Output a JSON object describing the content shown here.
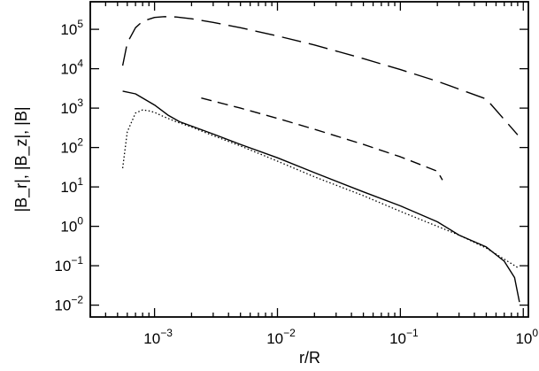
{
  "chart_data": {
    "type": "line",
    "xlabel": "r/R",
    "ylabel": "|B_r|, |B_z|, |B|",
    "xscale": "log",
    "yscale": "log",
    "xlim": [
      0.0003,
      1.1
    ],
    "ylim": [
      0.005,
      500000
    ],
    "x_ticks": [
      {
        "value": 0.001,
        "base": "10",
        "exp": "−3"
      },
      {
        "value": 0.01,
        "base": "10",
        "exp": "−2"
      },
      {
        "value": 0.1,
        "base": "10",
        "exp": "−1"
      },
      {
        "value": 1,
        "base": "10",
        "exp": "0"
      }
    ],
    "y_ticks": [
      {
        "value": 0.01,
        "base": "10",
        "exp": "−2"
      },
      {
        "value": 0.1,
        "base": "10",
        "exp": "−1"
      },
      {
        "value": 1,
        "base": "10",
        "exp": "0"
      },
      {
        "value": 10,
        "base": "10",
        "exp": "1"
      },
      {
        "value": 100,
        "base": "10",
        "exp": "2"
      },
      {
        "value": 1000,
        "base": "10",
        "exp": "3"
      },
      {
        "value": 10000,
        "base": "10",
        "exp": "4"
      },
      {
        "value": 100000,
        "base": "10",
        "exp": "5"
      }
    ],
    "grid": false,
    "series": [
      {
        "style": "long-dash",
        "x": [
          0.00055,
          0.0006,
          0.0007,
          0.0008,
          0.001,
          0.0012,
          0.0015,
          0.002,
          0.003,
          0.005,
          0.01,
          0.02,
          0.05,
          0.1,
          0.2,
          0.5,
          0.9
        ],
        "y": [
          12000,
          45000,
          110000,
          160000,
          200000,
          210000,
          205000,
          185000,
          150000,
          110000,
          68000,
          40000,
          18000,
          9500,
          4800,
          1700,
          210
        ]
      },
      {
        "style": "short-dash",
        "x": [
          0.0024,
          0.005,
          0.01,
          0.02,
          0.05,
          0.1,
          0.2,
          0.22
        ],
        "y": [
          1800,
          1000,
          550,
          290,
          120,
          58,
          25,
          15
        ]
      },
      {
        "style": "solid",
        "x": [
          0.00055,
          0.0007,
          0.001,
          0.0013,
          0.0016,
          0.002,
          0.003,
          0.005,
          0.01,
          0.02,
          0.05,
          0.1,
          0.2,
          0.3,
          0.5,
          0.7,
          0.85,
          0.93
        ],
        "y": [
          2700,
          2300,
          1200,
          650,
          450,
          350,
          220,
          120,
          55,
          23,
          7.5,
          3.3,
          1.3,
          0.6,
          0.3,
          0.13,
          0.05,
          0.012
        ]
      },
      {
        "style": "dotted",
        "x": [
          0.00055,
          0.0006,
          0.0007,
          0.0008,
          0.0009,
          0.001,
          0.0012,
          0.0015,
          0.002,
          0.003,
          0.005,
          0.01,
          0.02,
          0.05,
          0.1,
          0.2,
          0.3,
          0.5,
          0.9
        ],
        "y": [
          30,
          250,
          750,
          900,
          850,
          780,
          600,
          450,
          330,
          200,
          110,
          45,
          18,
          6,
          2.4,
          1.0,
          0.6,
          0.28,
          0.09
        ]
      }
    ]
  }
}
